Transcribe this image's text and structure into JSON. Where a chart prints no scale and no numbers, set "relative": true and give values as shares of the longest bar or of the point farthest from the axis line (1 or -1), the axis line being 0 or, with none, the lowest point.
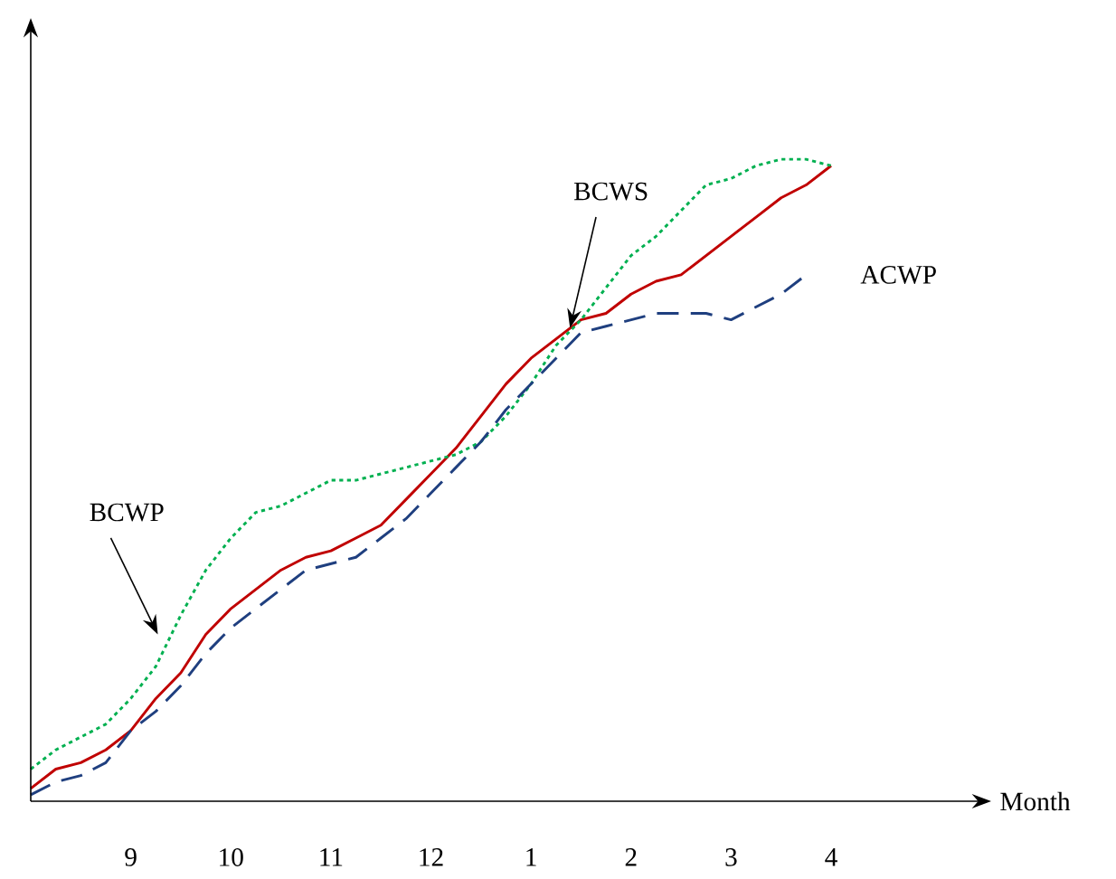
{
  "chart_data": {
    "type": "line",
    "relative": true,
    "annotations": [
      "Month"
    ],
    "legend": false,
    "marker": "none",
    "categories": [
      null,
      null,
      null,
      null,
      "9",
      null,
      null,
      null,
      "10",
      null,
      null,
      null,
      "11",
      null,
      null,
      null,
      "12",
      null,
      null,
      null,
      "1",
      null,
      null,
      null,
      "2",
      null,
      null,
      null,
      "3",
      null,
      null,
      null,
      "4"
    ],
    "series": [
      {
        "name": "BCWS",
        "color": "#c00000",
        "line_style": "solid",
        "values": [
          0.02,
          0.05,
          0.06,
          0.08,
          0.11,
          0.16,
          0.2,
          0.26,
          0.3,
          0.33,
          0.36,
          0.38,
          0.39,
          0.41,
          0.43,
          0.47,
          0.51,
          0.55,
          0.6,
          0.65,
          0.69,
          0.72,
          0.75,
          0.76,
          0.79,
          0.81,
          0.82,
          0.85,
          0.88,
          0.91,
          0.94,
          0.96,
          0.99
        ]
      },
      {
        "name": "BCWP",
        "color": "#00b050",
        "line_style": "dotted",
        "values": [
          0.05,
          0.08,
          0.1,
          0.12,
          0.16,
          0.21,
          0.29,
          0.36,
          0.41,
          0.45,
          0.46,
          0.48,
          0.5,
          0.5,
          0.51,
          0.52,
          0.53,
          0.54,
          0.56,
          0.6,
          0.65,
          0.71,
          0.75,
          0.8,
          0.85,
          0.88,
          0.92,
          0.96,
          0.97,
          0.99,
          1.0,
          1.0,
          0.99
        ]
      },
      {
        "name": "ACWP",
        "color": "#1f3f7f",
        "line_style": "dashed",
        "values": [
          0.01,
          0.03,
          0.04,
          0.06,
          0.11,
          0.14,
          0.18,
          0.23,
          0.27,
          0.3,
          0.33,
          0.36,
          0.37,
          0.38,
          0.41,
          0.44,
          0.48,
          0.52,
          0.56,
          0.61,
          0.65,
          0.69,
          0.73,
          0.74,
          0.75,
          0.76,
          0.76,
          0.76,
          0.75,
          0.77,
          0.79,
          0.82,
          null
        ]
      }
    ]
  }
}
